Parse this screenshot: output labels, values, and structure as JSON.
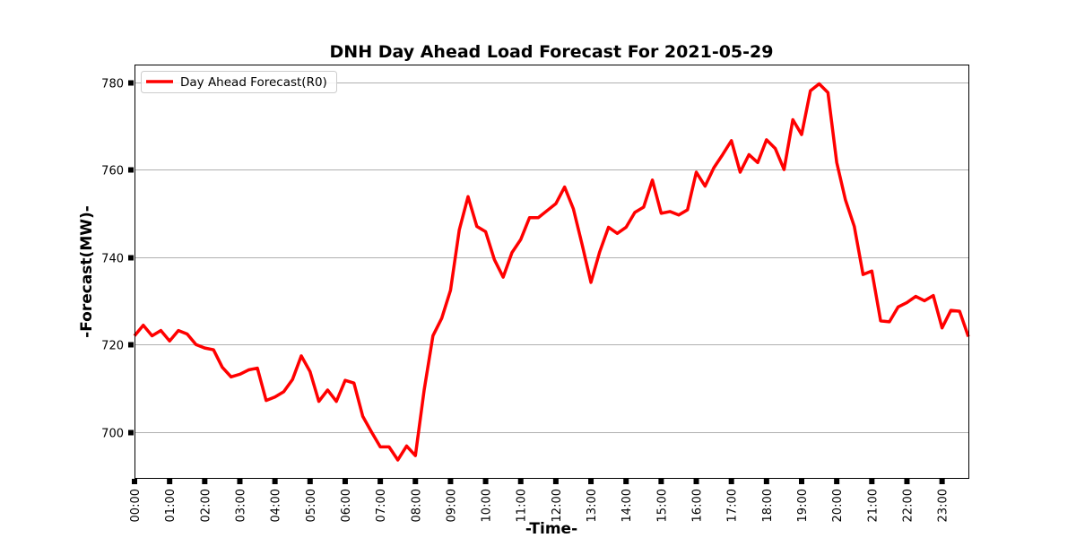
{
  "chart_data": {
    "type": "line",
    "title": "DNH Day Ahead Load Forecast For 2021-05-29",
    "xlabel": "-Time-",
    "ylabel": "-Forecast(MW)-",
    "x_ticks": [
      "00:00",
      "01:00",
      "02:00",
      "03:00",
      "04:00",
      "05:00",
      "06:00",
      "07:00",
      "08:00",
      "09:00",
      "10:00",
      "11:00",
      "12:00",
      "13:00",
      "14:00",
      "15:00",
      "16:00",
      "17:00",
      "18:00",
      "19:00",
      "20:00",
      "21:00",
      "22:00",
      "23:00"
    ],
    "y_ticks": [
      700,
      720,
      740,
      760,
      780
    ],
    "ylim": [
      689.5,
      784
    ],
    "x_interval_minutes": 15,
    "grid": "y",
    "legend_position": "top-left",
    "colors": {
      "series": "#ff0000",
      "grid": "#b0b0b0",
      "axis": "#000000"
    },
    "series": [
      {
        "name": "Day Ahead Forecast(R0)",
        "values": [
          722.0,
          724.4,
          722.0,
          723.2,
          720.8,
          723.2,
          722.4,
          720.0,
          719.2,
          718.8,
          714.8,
          712.6,
          713.2,
          714.2,
          714.6,
          707.2,
          708.0,
          709.2,
          712.0,
          717.4,
          713.8,
          707.0,
          709.6,
          707.0,
          711.8,
          711.2,
          703.6,
          700.0,
          696.6,
          696.6,
          693.6,
          696.8,
          694.6,
          709.6,
          722.0,
          726.0,
          732.4,
          746.2,
          753.8,
          747.0,
          745.8,
          739.4,
          735.4,
          741.0,
          744.0,
          749.0,
          749.0,
          750.6,
          752.2,
          756.0,
          751.0,
          742.8,
          734.2,
          741.2,
          746.8,
          745.4,
          746.8,
          750.2,
          751.4,
          757.6,
          750.0,
          750.4,
          749.6,
          750.8,
          759.4,
          756.2,
          760.4,
          763.4,
          766.6,
          759.4,
          763.4,
          761.6,
          766.8,
          764.8,
          760.0,
          771.4,
          768.0,
          778.0,
          779.6,
          777.6,
          761.6,
          753.0,
          747.0,
          736.0,
          736.8,
          725.4,
          725.2,
          728.6,
          729.6,
          731.0,
          730.0,
          731.2,
          723.8,
          727.8,
          727.6,
          721.8
        ]
      }
    ]
  }
}
